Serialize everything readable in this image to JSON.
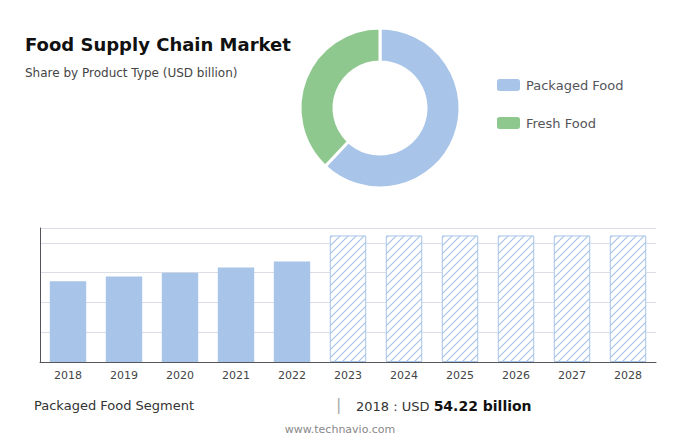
{
  "chart_data": [
    {
      "type": "pie",
      "title": "Food Supply Chain Market",
      "subtitle": "Share by Product Type (USD billion)",
      "categories": [
        "Packaged Food",
        "Fresh Food"
      ],
      "values": [
        62,
        38
      ],
      "colors": [
        "#a8c4e8",
        "#8ec88e"
      ],
      "legend": "right"
    },
    {
      "type": "bar",
      "categories": [
        "2018",
        "2019",
        "2020",
        "2021",
        "2022",
        "2023",
        "2024",
        "2025",
        "2026",
        "2027",
        "2028"
      ],
      "series": [
        {
          "color": "#a8c4e8",
          "values": [
            54.22,
            57.5,
            60.0,
            63.5,
            67.5,
            null,
            null,
            null,
            null,
            null,
            null
          ]
        },
        {
          "color": "#a8c4e8",
          "values": [
            null,
            null,
            null,
            null,
            null,
            85,
            85,
            85,
            85,
            85,
            85
          ]
        }
      ],
      "ylim": [
        0,
        90
      ],
      "yticks": [
        0,
        20,
        40,
        60,
        80
      ],
      "grid": true,
      "tick_labels": "x",
      "annotations": [
        "Packaged Food Segment",
        "|",
        "2018 : USD ",
        "54.22 billion",
        "www.technavio.com"
      ]
    }
  ]
}
